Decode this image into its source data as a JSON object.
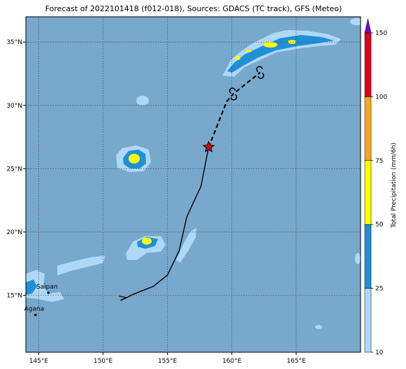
{
  "title": "Forecast of 2022101418 (f012-018), Sources: GDACS (TC track), GFS (Meteo)",
  "map": {
    "lon_range": [
      144,
      170
    ],
    "lat_range": [
      10.5,
      37
    ],
    "lon_ticks": [
      {
        "v": 145,
        "label": "145°E"
      },
      {
        "v": 150,
        "label": "150°E"
      },
      {
        "v": 155,
        "label": "155°E"
      },
      {
        "v": 160,
        "label": "160°E"
      },
      {
        "v": 165,
        "label": "165°E"
      }
    ],
    "lat_ticks": [
      {
        "v": 15,
        "label": "15°N"
      },
      {
        "v": 20,
        "label": "20°N"
      },
      {
        "v": 25,
        "label": "25°N"
      },
      {
        "v": 30,
        "label": "30°N"
      },
      {
        "v": 35,
        "label": "35°N"
      }
    ],
    "cities": [
      {
        "name": "Saipan",
        "lon": 145.75,
        "lat": 15.2
      },
      {
        "name": "Agana",
        "lon": 144.75,
        "lat": 13.45
      }
    ],
    "track_past": [
      [
        151.4,
        14.6
      ],
      [
        152.4,
        15.1
      ],
      [
        153.9,
        15.7
      ],
      [
        155.0,
        16.6
      ],
      [
        155.9,
        18.5
      ],
      [
        156.5,
        21.2
      ],
      [
        157.6,
        23.6
      ],
      [
        158.2,
        26.7
      ]
    ],
    "track_forecast": [
      [
        158.2,
        26.7
      ],
      [
        159.6,
        30.3
      ],
      [
        160.1,
        30.9
      ],
      [
        162.2,
        32.6
      ]
    ],
    "current_position": [
      158.2,
      26.7
    ],
    "colorbar": {
      "label": "Total Precipitation (mm/6h)",
      "levels": [
        10,
        25,
        50,
        75,
        100,
        150
      ],
      "colors": [
        "#aed8f7",
        "#1f8fd8",
        "#ffff00",
        "#f5a623",
        "#e0001b"
      ],
      "extend_color": "#7a00c8",
      "ocean_color": "#78a8cc"
    }
  }
}
